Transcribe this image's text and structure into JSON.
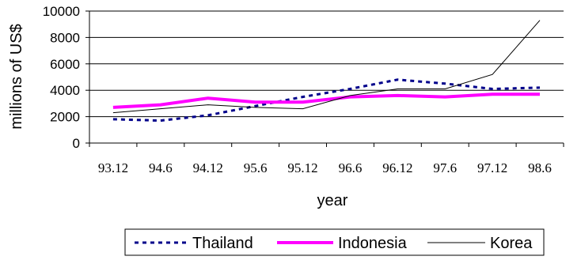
{
  "chart_data": {
    "type": "line",
    "categories": [
      "93.12",
      "94.6",
      "94.12",
      "95.6",
      "95.12",
      "96.6",
      "96.12",
      "97.6",
      "97.12",
      "98.6"
    ],
    "series": [
      {
        "name": "Thailand",
        "values": [
          1800,
          1700,
          2100,
          2800,
          3500,
          4100,
          4800,
          4500,
          4100,
          4200
        ],
        "color": "#00008b",
        "style": "dotted"
      },
      {
        "name": "Indonesia",
        "values": [
          2700,
          2900,
          3400,
          3100,
          3100,
          3500,
          3600,
          3500,
          3700,
          3700
        ],
        "color": "#ff00ff",
        "style": "thick"
      },
      {
        "name": "Korea",
        "values": [
          2300,
          2600,
          2900,
          2700,
          2600,
          3600,
          4100,
          4100,
          5200,
          9300
        ],
        "color": "#000000",
        "style": "thin"
      }
    ],
    "xlabel": "year",
    "ylabel": "millions of US$",
    "ylim": [
      0,
      10000
    ],
    "yticks": [
      0,
      2000,
      4000,
      6000,
      8000,
      10000
    ],
    "grid": true,
    "legend": "bottom"
  }
}
